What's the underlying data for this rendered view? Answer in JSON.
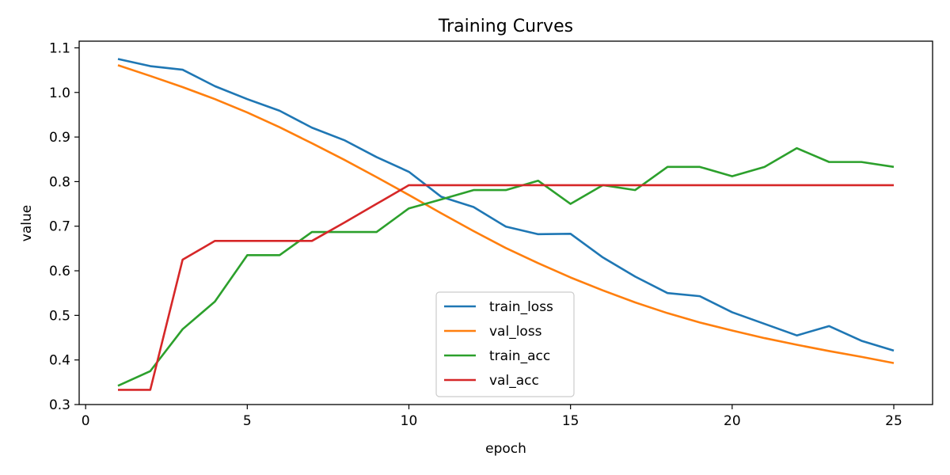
{
  "chart_data": {
    "type": "line",
    "title": "Training Curves",
    "xlabel": "epoch",
    "ylabel": "value",
    "xlim": [
      -0.2,
      26.2
    ],
    "ylim": [
      0.3,
      1.115
    ],
    "xticks": [
      0,
      5,
      10,
      15,
      20,
      25
    ],
    "yticks": [
      0.3,
      0.4,
      0.5,
      0.6,
      0.7,
      0.8,
      0.9,
      1.0,
      1.1
    ],
    "ytick_labels": [
      "0.3",
      "0.4",
      "0.5",
      "0.6",
      "0.7",
      "0.8",
      "0.9",
      "1.0",
      "1.1"
    ],
    "grid": false,
    "legend_position": "bottom-center",
    "x": [
      1,
      2,
      3,
      4,
      5,
      6,
      7,
      8,
      9,
      10,
      11,
      12,
      13,
      14,
      15,
      16,
      17,
      18,
      19,
      20,
      21,
      22,
      23,
      24,
      25
    ],
    "series": [
      {
        "name": "train_loss",
        "color": "#1f77b4",
        "values": [
          1.075,
          1.059,
          1.051,
          1.014,
          0.985,
          0.959,
          0.921,
          0.893,
          0.855,
          0.822,
          0.766,
          0.743,
          0.699,
          0.682,
          0.683,
          0.63,
          0.587,
          0.55,
          0.543,
          0.507,
          0.481,
          0.455,
          0.476,
          0.443,
          0.421
        ]
      },
      {
        "name": "val_loss",
        "color": "#ff7f0e",
        "values": [
          1.061,
          1.037,
          1.012,
          0.985,
          0.955,
          0.922,
          0.886,
          0.849,
          0.81,
          0.77,
          0.729,
          0.689,
          0.651,
          0.617,
          0.585,
          0.556,
          0.529,
          0.505,
          0.484,
          0.466,
          0.449,
          0.434,
          0.42,
          0.407,
          0.393
        ]
      },
      {
        "name": "train_acc",
        "color": "#2ca02c",
        "values": [
          0.342,
          0.375,
          0.469,
          0.531,
          0.635,
          0.635,
          0.687,
          0.687,
          0.687,
          0.74,
          0.76,
          0.781,
          0.781,
          0.802,
          0.75,
          0.792,
          0.781,
          0.833,
          0.833,
          0.812,
          0.833,
          0.875,
          0.844,
          0.844,
          0.833
        ]
      },
      {
        "name": "val_acc",
        "color": "#d62728",
        "values": [
          0.333,
          0.333,
          0.625,
          0.667,
          0.667,
          0.667,
          0.667,
          0.708,
          0.75,
          0.792,
          0.792,
          0.792,
          0.792,
          0.792,
          0.792,
          0.792,
          0.792,
          0.792,
          0.792,
          0.792,
          0.792,
          0.792,
          0.792,
          0.792,
          0.792
        ]
      }
    ]
  }
}
